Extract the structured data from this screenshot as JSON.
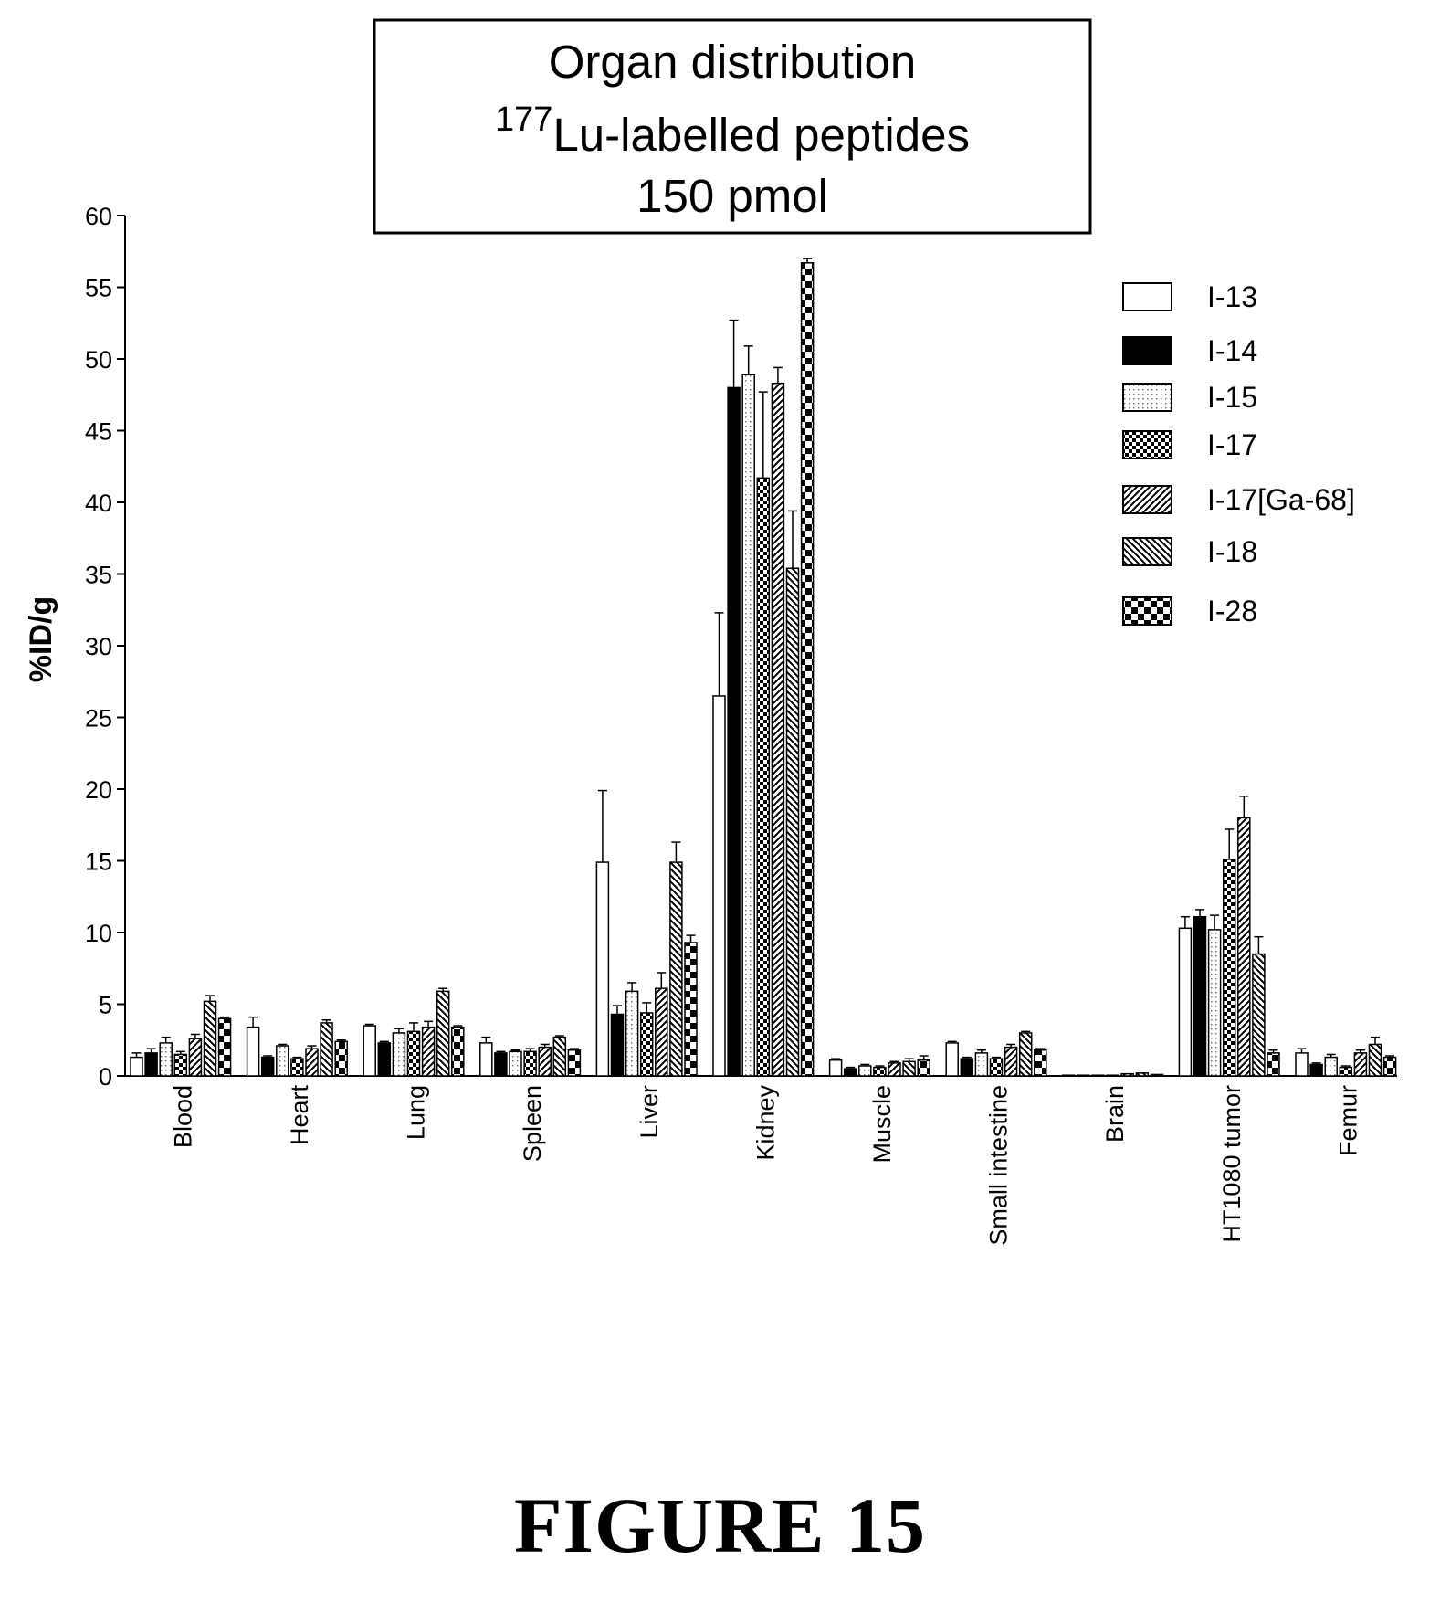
{
  "chart_data": {
    "type": "bar",
    "title_lines": [
      "Organ distribution",
      "Lu-labelled peptides",
      "150 pmol"
    ],
    "title_superscript": "177",
    "ylabel": "%ID/g",
    "xlabel": "",
    "ylim": [
      0,
      60
    ],
    "yticks": [
      0,
      5,
      10,
      15,
      20,
      25,
      30,
      35,
      40,
      45,
      50,
      55,
      60
    ],
    "grid": false,
    "legend_position": "top-right",
    "categories": [
      "Blood",
      "Heart",
      "Lung",
      "Spleen",
      "Liver",
      "Kidney",
      "Muscle",
      "Small intestine",
      "Brain",
      "HT1080 tumor",
      "Femur"
    ],
    "series": [
      {
        "name": "I-13",
        "pattern": "white",
        "values": [
          1.3,
          3.4,
          3.5,
          2.3,
          14.9,
          26.5,
          1.1,
          2.3,
          0.05,
          10.3,
          1.6
        ],
        "errors": [
          0.3,
          0.7,
          0.1,
          0.4,
          5.0,
          5.8,
          0.1,
          0.1,
          0.0,
          0.8,
          0.3
        ]
      },
      {
        "name": "I-14",
        "pattern": "black",
        "values": [
          1.6,
          1.3,
          2.3,
          1.6,
          4.3,
          48.0,
          0.5,
          1.2,
          0.0,
          11.1,
          0.8
        ],
        "errors": [
          0.3,
          0.1,
          0.1,
          0.1,
          0.6,
          4.7,
          0.1,
          0.1,
          0.0,
          0.5,
          0.1
        ]
      },
      {
        "name": "I-15",
        "pattern": "dots",
        "values": [
          2.3,
          2.1,
          3.0,
          1.7,
          5.9,
          48.9,
          0.7,
          1.6,
          0.0,
          10.2,
          1.3
        ],
        "errors": [
          0.4,
          0.1,
          0.3,
          0.1,
          0.6,
          2.0,
          0.1,
          0.2,
          0.0,
          1.0,
          0.2
        ]
      },
      {
        "name": "I-17",
        "pattern": "checks",
        "values": [
          1.5,
          1.2,
          3.1,
          1.7,
          4.4,
          41.7,
          0.6,
          1.2,
          0.0,
          15.1,
          0.6
        ],
        "errors": [
          0.2,
          0.1,
          0.6,
          0.2,
          0.7,
          6.0,
          0.1,
          0.1,
          0.0,
          2.1,
          0.1
        ]
      },
      {
        "name": "I-17[Ga-68]",
        "pattern": "diag-right",
        "values": [
          2.6,
          1.9,
          3.4,
          2.0,
          6.1,
          48.3,
          0.9,
          2.0,
          0.15,
          18.0,
          1.6
        ],
        "errors": [
          0.3,
          0.2,
          0.4,
          0.2,
          1.1,
          1.1,
          0.1,
          0.2,
          0.0,
          1.5,
          0.2
        ]
      },
      {
        "name": "I-18",
        "pattern": "diag-left",
        "values": [
          5.2,
          3.7,
          5.9,
          2.7,
          14.9,
          35.4,
          1.0,
          3.0,
          0.2,
          8.5,
          2.2
        ],
        "errors": [
          0.4,
          0.2,
          0.2,
          0.1,
          1.4,
          4.0,
          0.2,
          0.1,
          0.0,
          1.2,
          0.5
        ]
      },
      {
        "name": "I-28",
        "pattern": "big-checks",
        "values": [
          4.0,
          2.4,
          3.4,
          1.8,
          9.3,
          56.7,
          1.1,
          1.8,
          0.1,
          1.6,
          1.3
        ],
        "errors": [
          0.1,
          0.1,
          0.1,
          0.1,
          0.5,
          0.3,
          0.3,
          0.1,
          0.0,
          0.2,
          0.1
        ]
      }
    ]
  },
  "figure_label": "FIGURE 15"
}
